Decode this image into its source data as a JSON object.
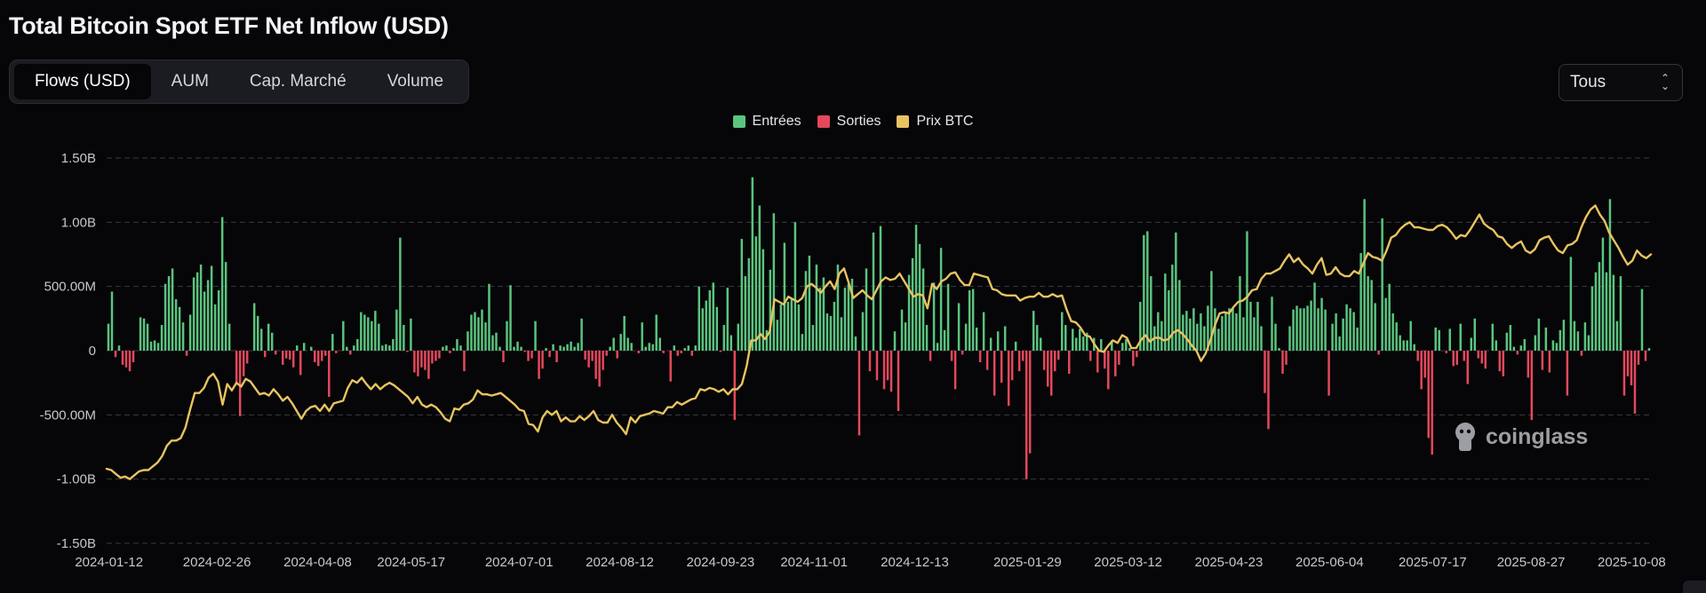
{
  "page": {
    "title": "Total Bitcoin Spot ETF Net Inflow (USD)",
    "tabs": [
      {
        "label": "Flows (USD)",
        "active": true
      },
      {
        "label": "AUM",
        "active": false
      },
      {
        "label": "Cap. Marché",
        "active": false
      },
      {
        "label": "Volume",
        "active": false
      }
    ],
    "range_select": {
      "value": "Tous"
    },
    "watermark": "coinglass"
  },
  "colors": {
    "inflow": "#5bc47f",
    "outflow": "#e5485c",
    "price": "#e8c361",
    "grid": "#3a3b40",
    "axis_text": "#c8c8cc"
  },
  "chart_data": {
    "type": "bar",
    "title": "Total Bitcoin Spot ETF Net Inflow (USD)",
    "legend": [
      {
        "name": "Entrées",
        "color": "#5bc47f"
      },
      {
        "name": "Sorties",
        "color": "#e5485c"
      },
      {
        "name": "Prix BTC",
        "color": "#e8c361"
      }
    ],
    "legend_position": "top-center",
    "grid": true,
    "ylim": [
      -1500000000,
      1500000000
    ],
    "y_ticks": [
      "1.50B",
      "1.00B",
      "500.00M",
      "0",
      "-500.00M",
      "-1.00B",
      "-1.50B"
    ],
    "y_tick_values": [
      1500000000,
      1000000000,
      500000000,
      0,
      -500000000,
      -1000000000,
      -1500000000
    ],
    "x_ticks": [
      "2024-01-12",
      "2024-02-26",
      "2024-04-08",
      "2024-05-17",
      "2024-07-01",
      "2024-08-12",
      "2024-09-23",
      "2024-11-01",
      "2024-12-13",
      "2025-01-29",
      "2025-03-12",
      "2025-04-23",
      "2025-06-04",
      "2025-07-17",
      "2025-08-27",
      "2025-10-08"
    ],
    "series": [
      {
        "name": "Entrées / Sorties",
        "kind": "bar",
        "x_start": "2024-01-11",
        "x_end": "2025-10-16",
        "values": [
          210,
          460,
          -50,
          40,
          -110,
          -130,
          -160,
          -90,
          0,
          260,
          250,
          210,
          70,
          80,
          60,
          200,
          520,
          580,
          640,
          400,
          340,
          220,
          -40,
          280,
          570,
          610,
          670,
          460,
          550,
          660,
          360,
          470,
          1040,
          690,
          210,
          0,
          -250,
          -510,
          -200,
          -100,
          0,
          370,
          270,
          170,
          -50,
          210,
          140,
          -30,
          0,
          -110,
          -60,
          -70,
          -130,
          40,
          -190,
          60,
          0,
          30,
          -90,
          -120,
          -80,
          -40,
          -360,
          130,
          -20,
          0,
          230,
          30,
          -30,
          40,
          90,
          300,
          280,
          260,
          230,
          310,
          210,
          40,
          50,
          40,
          90,
          320,
          880,
          200,
          -10,
          250,
          -170,
          -200,
          -130,
          -150,
          -220,
          -100,
          -80,
          -60,
          30,
          40,
          -20,
          20,
          90,
          40,
          -160,
          150,
          280,
          300,
          260,
          320,
          220,
          520,
          120,
          140,
          30,
          -90,
          230,
          510,
          30,
          70,
          30,
          -10,
          -80,
          -60,
          230,
          -220,
          -140,
          20,
          -50,
          50,
          -90,
          40,
          30,
          50,
          70,
          30,
          60,
          250,
          -70,
          -130,
          -80,
          -220,
          -280,
          -150,
          -40,
          30,
          100,
          -60,
          130,
          270,
          100,
          60,
          0,
          -20,
          220,
          30,
          60,
          50,
          280,
          100,
          -20,
          0,
          -240,
          40,
          -40,
          -20,
          20,
          40,
          -40,
          40,
          500,
          330,
          390,
          470,
          530,
          340,
          -10,
          200,
          490,
          120,
          -540,
          210,
          870,
          580,
          720,
          1350,
          890,
          1130,
          790,
          160,
          630,
          1070,
          240,
          360,
          840,
          380,
          400,
          1000,
          360,
          130,
          620,
          740,
          200,
          670,
          490,
          570,
          290,
          270,
          380,
          670,
          260,
          490,
          520,
          560,
          110,
          -660,
          300,
          640,
          -160,
          920,
          -230,
          970,
          -300,
          -230,
          -320,
          150,
          -470,
          320,
          220,
          590,
          720,
          980,
          830,
          640,
          200,
          -80,
          530,
          60,
          800,
          160,
          520,
          -80,
          -300,
          370,
          -30,
          210,
          470,
          480,
          180,
          -90,
          300,
          -150,
          100,
          -350,
          150,
          -250,
          190,
          -430,
          -230,
          70,
          -160,
          -80,
          -1000,
          -800,
          310,
          200,
          100,
          -150,
          -280,
          -350,
          -160,
          -70,
          300,
          200,
          -180,
          170,
          100,
          170,
          110,
          140,
          -80,
          100,
          -170,
          90,
          -140,
          -300,
          80,
          -200,
          -110,
          60,
          90,
          20,
          -120,
          -50,
          380,
          900,
          930,
          580,
          190,
          300,
          230,
          600,
          470,
          670,
          920,
          550,
          280,
          310,
          250,
          330,
          210,
          290,
          190,
          350,
          620,
          330,
          170,
          270,
          300,
          330,
          330,
          290,
          580,
          260,
          930,
          380,
          260,
          380,
          190,
          -330,
          -610,
          420,
          210,
          20,
          -180,
          -110,
          190,
          320,
          350,
          330,
          330,
          350,
          390,
          530,
          330,
          410,
          320,
          -350,
          210,
          290,
          110,
          250,
          360,
          330,
          300,
          180,
          760,
          1180,
          580,
          550,
          370,
          -30,
          1030,
          410,
          520,
          290,
          220,
          120,
          80,
          80,
          230,
          50,
          -80,
          -300,
          -210,
          -680,
          -810,
          180,
          160,
          0,
          -20,
          170,
          -120,
          -110,
          210,
          -80,
          -260,
          100,
          250,
          -60,
          -100,
          -140,
          0,
          210,
          80,
          -160,
          -200,
          140,
          200,
          30,
          -30,
          40,
          90,
          -210,
          -540,
          120,
          250,
          -150,
          180,
          -170,
          80,
          60,
          160,
          240,
          -350,
          730,
          230,
          150,
          -40,
          220,
          120,
          500,
          610,
          690,
          880,
          610,
          1180,
          590,
          230,
          580,
          -350,
          -200,
          -270,
          -490,
          -110,
          480,
          -80,
          20
        ]
      },
      {
        "name": "Prix BTC",
        "kind": "line",
        "y_range_in_bar_units": [
          -1500000000,
          1500000000
        ],
        "values": [
          -920,
          -930,
          -960,
          -990,
          -980,
          -1000,
          -970,
          -940,
          -930,
          -930,
          -900,
          -870,
          -820,
          -740,
          -700,
          -700,
          -680,
          -600,
          -460,
          -330,
          -330,
          -290,
          -210,
          -180,
          -240,
          -420,
          -260,
          -310,
          -250,
          -280,
          -220,
          -240,
          -290,
          -340,
          -330,
          -350,
          -300,
          -340,
          -390,
          -360,
          -410,
          -470,
          -530,
          -470,
          -440,
          -430,
          -470,
          -420,
          -470,
          -410,
          -400,
          -390,
          -290,
          -230,
          -250,
          -210,
          -260,
          -300,
          -260,
          -300,
          -270,
          -250,
          -270,
          -300,
          -330,
          -360,
          -410,
          -360,
          -420,
          -440,
          -420,
          -440,
          -480,
          -530,
          -550,
          -450,
          -460,
          -420,
          -410,
          -380,
          -310,
          -340,
          -340,
          -350,
          -340,
          -330,
          -360,
          -390,
          -420,
          -460,
          -470,
          -570,
          -580,
          -630,
          -520,
          -470,
          -500,
          -470,
          -550,
          -520,
          -550,
          -550,
          -510,
          -540,
          -510,
          -470,
          -540,
          -560,
          -560,
          -500,
          -560,
          -600,
          -650,
          -520,
          -560,
          -510,
          -500,
          -490,
          -470,
          -480,
          -490,
          -440,
          -440,
          -400,
          -420,
          -400,
          -380,
          -370,
          -300,
          -310,
          -290,
          -300,
          -320,
          -300,
          -340,
          -300,
          -300,
          -260,
          -120,
          80,
          80,
          130,
          90,
          150,
          400,
          380,
          360,
          420,
          400,
          380,
          410,
          500,
          520,
          490,
          450,
          500,
          540,
          480,
          600,
          640,
          530,
          410,
          440,
          470,
          430,
          400,
          470,
          540,
          570,
          550,
          560,
          600,
          540,
          480,
          420,
          440,
          430,
          330,
          520,
          480,
          540,
          560,
          600,
          610,
          550,
          510,
          510,
          600,
          590,
          580,
          570,
          480,
          470,
          440,
          430,
          430,
          430,
          390,
          410,
          420,
          420,
          450,
          420,
          420,
          440,
          420,
          430,
          320,
          230,
          220,
          180,
          120,
          110,
          50,
          0,
          -10,
          40,
          80,
          60,
          120,
          100,
          20,
          20,
          80,
          120,
          70,
          100,
          100,
          80,
          90,
          140,
          160,
          130,
          90,
          40,
          0,
          -80,
          -20,
          80,
          200,
          290,
          300,
          290,
          340,
          380,
          390,
          420,
          470,
          480,
          560,
          600,
          600,
          620,
          640,
          700,
          750,
          690,
          720,
          670,
          640,
          600,
          670,
          720,
          590,
          600,
          650,
          600,
          580,
          580,
          620,
          600,
          680,
          760,
          730,
          720,
          700,
          780,
          880,
          900,
          950,
          980,
          1000,
          960,
          960,
          950,
          940,
          940,
          970,
          980,
          960,
          920,
          870,
          900,
          890,
          940,
          1000,
          1060,
          990,
          960,
          940,
          890,
          880,
          830,
          800,
          830,
          850,
          780,
          760,
          790,
          860,
          880,
          890,
          830,
          780,
          760,
          820,
          830,
          860,
          960,
          1040,
          1100,
          1130,
          1060,
          1010,
          920,
          860,
          800,
          730,
          670,
          700,
          780,
          740,
          720,
          750
        ]
      }
    ]
  }
}
